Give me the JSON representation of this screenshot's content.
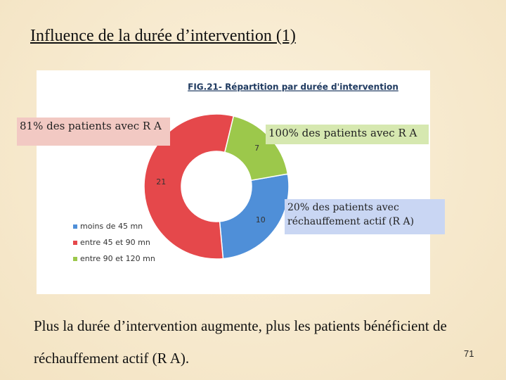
{
  "slide": {
    "title": "Influence de la durée d’intervention (1)",
    "callouts": [
      "81% des patients avec R A",
      "100% des patients avec R A",
      "20% des patients avec réchauffement actif (R A)"
    ],
    "body": "Plus la durée d’intervention augmente, plus les patients bénéficient de réchauffement actif (R A).",
    "page_number": "71"
  },
  "chart_data": {
    "type": "donut",
    "title": "FIG.21- Répartition par durée d'intervention",
    "categories": [
      "moins de 45 mn",
      "entre 45 et 90 mn",
      "entre 90 et 120 mn"
    ],
    "values": [
      10,
      21,
      7
    ],
    "colors": [
      "#4f8fd8",
      "#e5484b",
      "#9cc84b"
    ],
    "legend": "left"
  }
}
